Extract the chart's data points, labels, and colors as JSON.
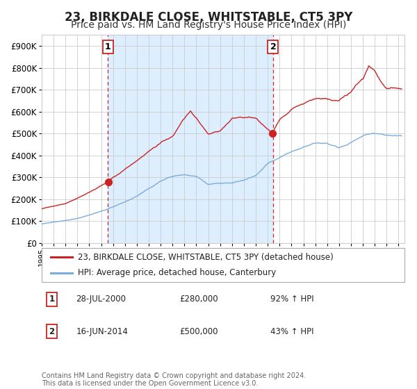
{
  "title": "23, BIRKDALE CLOSE, WHITSTABLE, CT5 3PY",
  "subtitle": "Price paid vs. HM Land Registry's House Price Index (HPI)",
  "legend_line1": "23, BIRKDALE CLOSE, WHITSTABLE, CT5 3PY (detached house)",
  "legend_line2": "HPI: Average price, detached house, Canterbury",
  "annotation1_label": "1",
  "annotation1_date": "28-JUL-2000",
  "annotation1_price": "£280,000",
  "annotation1_hpi": "92% ↑ HPI",
  "annotation1_year": 2000.57,
  "annotation1_value": 280000,
  "annotation2_label": "2",
  "annotation2_date": "16-JUN-2014",
  "annotation2_price": "£500,000",
  "annotation2_hpi": "43% ↑ HPI",
  "annotation2_year": 2014.45,
  "annotation2_value": 500000,
  "ylabel_ticks": [
    "£0",
    "£100K",
    "£200K",
    "£300K",
    "£400K",
    "£500K",
    "£600K",
    "£700K",
    "£800K",
    "£900K"
  ],
  "ytick_values": [
    0,
    100000,
    200000,
    300000,
    400000,
    500000,
    600000,
    700000,
    800000,
    900000
  ],
  "xmin": 1995.0,
  "xmax": 2025.5,
  "ymin": 0,
  "ymax": 950000,
  "red_color": "#cc2222",
  "blue_color": "#7aaddb",
  "shading_color": "#ddeeff",
  "grid_color": "#cccccc",
  "footer_text": "Contains HM Land Registry data © Crown copyright and database right 2024.\nThis data is licensed under the Open Government Licence v3.0.",
  "background_color": "#ffffff",
  "title_fontsize": 12,
  "subtitle_fontsize": 10
}
